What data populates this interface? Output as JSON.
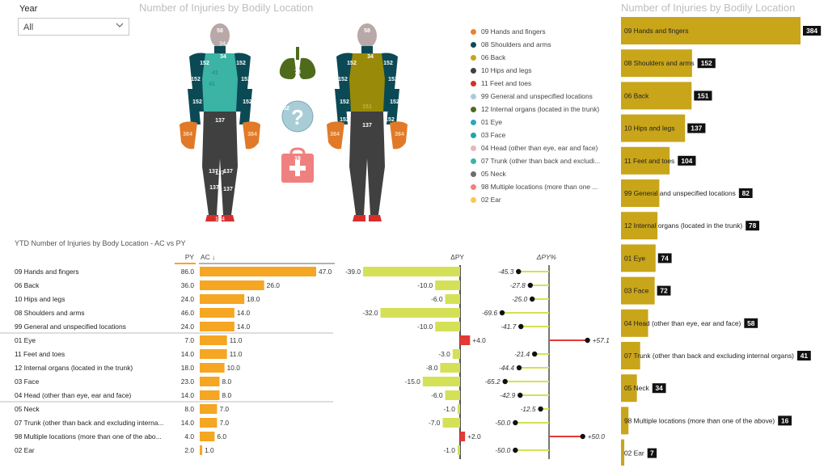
{
  "slicer": {
    "label": "Year",
    "value": "All"
  },
  "figure_title": "Number of Injuries by Bodily Location",
  "rank_title": "Number of Injuries by Bodily Location",
  "table_title": "YTD Number of Injuries by Body Location - AC vs PY",
  "table_headers": {
    "py": "PY",
    "ac": "AC ↓",
    "dpy": "ΔPY",
    "dpypct": "ΔPY%"
  },
  "colors": {
    "ac_bar": "#f5a623",
    "rank_bar": "#c9a51a",
    "dpy_neg": "#d4e157",
    "dpy_pos": "#e53935",
    "torso_teal": "#3bb3a5",
    "torso_olive": "#9a8a09",
    "navy": "#0b4a55",
    "legs": "#404040",
    "hands": "#e07a28"
  },
  "body_map": {
    "front": {
      "head": "58",
      "head_small": "34",
      "neck": "34",
      "shoulder_l": "152",
      "shoulder_r": "152",
      "arm_l": "152",
      "arm_r": "152",
      "forearm_l": "152",
      "forearm_r": "152",
      "trunk_1": "41",
      "trunk_2": "41",
      "hip": "137",
      "leg_l": "137",
      "leg_r": "137",
      "knee": "137",
      "shin_l": "137",
      "shin_r": "137",
      "hand_l": "384",
      "hand_r": "384",
      "feet": "104"
    },
    "back": {
      "head": "58",
      "neck": "34",
      "shoulder_l": "152",
      "shoulder_r": "152",
      "arm_l": "152",
      "arm_r": "152",
      "forearm_l": "152",
      "forearm_r": "152",
      "back_1": "151",
      "hip": "137",
      "hand_l": "384",
      "hand_r": "384",
      "wrist_l": "152",
      "wrist_r": "152"
    },
    "icons": {
      "help": "82",
      "organs": "78",
      "firstaid": "16"
    }
  },
  "legend": [
    {
      "label": "09 Hands and fingers",
      "color": "#f07f2a"
    },
    {
      "label": "08 Shoulders and arms",
      "color": "#0d4b55"
    },
    {
      "label": "06 Back",
      "color": "#c9a51a"
    },
    {
      "label": "10 Hips and legs",
      "color": "#404040"
    },
    {
      "label": "11 Feet and toes",
      "color": "#d62d2d"
    },
    {
      "label": "99 General and unspecified locations",
      "color": "#a8cdd6"
    },
    {
      "label": "12 Internal organs (located in the trunk)",
      "color": "#4e6b1b"
    },
    {
      "label": "01 Eye",
      "color": "#2aa7c6"
    },
    {
      "label": "03 Face",
      "color": "#1fa6a6"
    },
    {
      "label": "04 Head (other than eye, ear and face)",
      "color": "#e8b7b7"
    },
    {
      "label": "07 Trunk (other than back and excludi...",
      "color": "#3bb3a5"
    },
    {
      "label": "05 Neck",
      "color": "#6d6d6d"
    },
    {
      "label": "98 Multiple locations (more than one ...",
      "color": "#f08080"
    },
    {
      "label": "02 Ear",
      "color": "#f5c94c"
    }
  ],
  "chart_data": [
    {
      "type": "bar",
      "orientation": "horizontal",
      "title": "Number of Injuries by Bodily Location",
      "categories": [
        "09 Hands and fingers",
        "08 Shoulders and arms",
        "06 Back",
        "10 Hips and legs",
        "11 Feet and toes",
        "99 General and unspecified locations",
        "12 Internal organs (located in the trunk)",
        "01 Eye",
        "03 Face",
        "04 Head (other than eye, ear and face)",
        "07 Trunk (other than back and excluding internal organs)",
        "05 Neck",
        "98 Multiple locations (more than one of the above)",
        "02 Ear"
      ],
      "values": [
        384,
        152,
        151,
        137,
        104,
        82,
        78,
        74,
        72,
        58,
        41,
        34,
        16,
        7
      ]
    },
    {
      "type": "table",
      "title": "YTD Number of Injuries by Body Location - AC vs PY",
      "rows": [
        {
          "label": "09 Hands and fingers",
          "py": "86.0",
          "ac": 47.0,
          "ac_label": "47.0",
          "dpy": -39.0,
          "dpy_label": "-39.0",
          "dpypct": -45.3,
          "dpypct_label": "-45.3",
          "group": 1
        },
        {
          "label": "06 Back",
          "py": "36.0",
          "ac": 26.0,
          "ac_label": "26.0",
          "dpy": -10.0,
          "dpy_label": "-10.0",
          "dpypct": -27.8,
          "dpypct_label": "-27.8",
          "group": 1
        },
        {
          "label": "10 Hips and legs",
          "py": "24.0",
          "ac": 18.0,
          "ac_label": "18.0",
          "dpy": -6.0,
          "dpy_label": "-6.0",
          "dpypct": -25.0,
          "dpypct_label": "-25.0",
          "group": 1
        },
        {
          "label": "08 Shoulders and arms",
          "py": "46.0",
          "ac": 14.0,
          "ac_label": "14.0",
          "dpy": -32.0,
          "dpy_label": "-32.0",
          "dpypct": -69.6,
          "dpypct_label": "-69.6",
          "group": 1
        },
        {
          "label": "99 General and unspecified locations",
          "py": "24.0",
          "ac": 14.0,
          "ac_label": "14.0",
          "dpy": -10.0,
          "dpy_label": "-10.0",
          "dpypct": -41.7,
          "dpypct_label": "-41.7",
          "group": 1
        },
        {
          "label": "01 Eye",
          "py": "7.0",
          "ac": 11.0,
          "ac_label": "11.0",
          "dpy": 4.0,
          "dpy_label": "+4.0",
          "dpypct": 57.1,
          "dpypct_label": "+57.1",
          "group": 2
        },
        {
          "label": "11 Feet and toes",
          "py": "14.0",
          "ac": 11.0,
          "ac_label": "11.0",
          "dpy": -3.0,
          "dpy_label": "-3.0",
          "dpypct": -21.4,
          "dpypct_label": "-21.4",
          "group": 2
        },
        {
          "label": "12 Internal organs (located in the trunk)",
          "py": "18.0",
          "ac": 10.0,
          "ac_label": "10.0",
          "dpy": -8.0,
          "dpy_label": "-8.0",
          "dpypct": -44.4,
          "dpypct_label": "-44.4",
          "group": 2
        },
        {
          "label": "03 Face",
          "py": "23.0",
          "ac": 8.0,
          "ac_label": "8.0",
          "dpy": -15.0,
          "dpy_label": "-15.0",
          "dpypct": -65.2,
          "dpypct_label": "-65.2",
          "group": 2
        },
        {
          "label": "04 Head (other than eye, ear and face)",
          "py": "14.0",
          "ac": 8.0,
          "ac_label": "8.0",
          "dpy": -6.0,
          "dpy_label": "-6.0",
          "dpypct": -42.9,
          "dpypct_label": "-42.9",
          "group": 2
        },
        {
          "label": "05 Neck",
          "py": "8.0",
          "ac": 7.0,
          "ac_label": "7.0",
          "dpy": -1.0,
          "dpy_label": "-1.0",
          "dpypct": -12.5,
          "dpypct_label": "-12.5",
          "group": 3
        },
        {
          "label": "07 Trunk (other than back and excluding interna...",
          "py": "14.0",
          "ac": 7.0,
          "ac_label": "7.0",
          "dpy": -7.0,
          "dpy_label": "-7.0",
          "dpypct": -50.0,
          "dpypct_label": "-50.0",
          "group": 3
        },
        {
          "label": "98 Multiple locations (more than one of the abo...",
          "py": "4.0",
          "ac": 6.0,
          "ac_label": "6.0",
          "dpy": 2.0,
          "dpy_label": "+2.0",
          "dpypct": 50.0,
          "dpypct_label": "+50.0",
          "group": 3
        },
        {
          "label": "02 Ear",
          "py": "2.0",
          "ac": 1.0,
          "ac_label": "1.0",
          "dpy": -1.0,
          "dpy_label": "-1.0",
          "dpypct": -50.0,
          "dpypct_label": "-50.0",
          "group": 3
        }
      ]
    }
  ]
}
